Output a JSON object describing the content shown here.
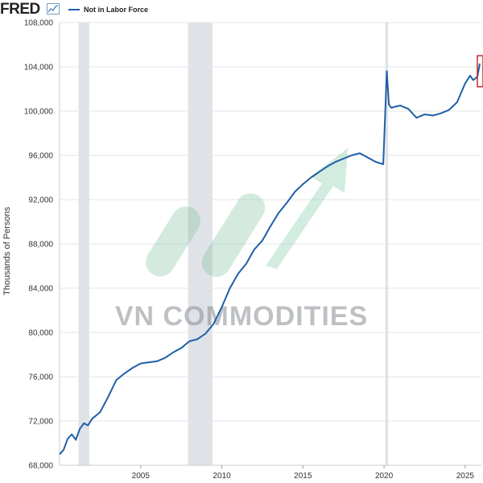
{
  "header": {
    "logo_text": "FRED",
    "legend_label": "Not in Labor Force",
    "line_color": "#1f5fa6"
  },
  "watermark": {
    "text": "VN COMMODITIES"
  },
  "chart_data": {
    "type": "line",
    "title": "Not in Labor Force",
    "xlabel": "",
    "ylabel": "Thousands of Persons",
    "xlim": [
      2000.0,
      2026.0
    ],
    "ylim": [
      68000,
      108000
    ],
    "x_ticks": [
      2005,
      2010,
      2015,
      2020,
      2025
    ],
    "y_ticks": [
      68000,
      72000,
      76000,
      80000,
      84000,
      88000,
      92000,
      96000,
      100000,
      104000,
      108000
    ],
    "y_tick_labels": [
      "68,000",
      "72,000",
      "76,000",
      "80,000",
      "84,000",
      "88,000",
      "92,000",
      "96,000",
      "100,000",
      "104,000",
      "108,000"
    ],
    "x_tick_labels": [
      "2005",
      "2010",
      "2015",
      "2020",
      "2025"
    ],
    "recessions": [
      [
        2001.17,
        2001.83
      ],
      [
        2007.92,
        2009.42
      ],
      [
        2020.08,
        2020.25
      ]
    ],
    "highlight_box": {
      "x": [
        2025.75,
        2026.0
      ],
      "y": [
        102200,
        105000
      ]
    },
    "series": [
      {
        "name": "Not in Labor Force",
        "x": [
          2000.0,
          2000.25,
          2000.5,
          2000.75,
          2001.0,
          2001.25,
          2001.5,
          2001.75,
          2002.0,
          2002.5,
          2003.0,
          2003.5,
          2004.0,
          2004.5,
          2005.0,
          2005.5,
          2006.0,
          2006.5,
          2007.0,
          2007.5,
          2008.0,
          2008.5,
          2009.0,
          2009.5,
          2010.0,
          2010.5,
          2011.0,
          2011.5,
          2012.0,
          2012.5,
          2013.0,
          2013.5,
          2014.0,
          2014.5,
          2015.0,
          2015.5,
          2016.0,
          2016.5,
          2017.0,
          2017.5,
          2018.0,
          2018.5,
          2019.0,
          2019.5,
          2019.95,
          2020.17,
          2020.3,
          2020.45,
          2020.7,
          2021.0,
          2021.5,
          2022.0,
          2022.5,
          2023.0,
          2023.5,
          2024.0,
          2024.5,
          2025.0,
          2025.3,
          2025.5,
          2025.75,
          2025.9
        ],
        "values": [
          69000,
          69400,
          70400,
          70800,
          70300,
          71300,
          71800,
          71600,
          72200,
          72800,
          74200,
          75700,
          76300,
          76800,
          77200,
          77300,
          77400,
          77700,
          78200,
          78600,
          79200,
          79400,
          79900,
          80800,
          82300,
          84000,
          85300,
          86200,
          87500,
          88300,
          89600,
          90800,
          91700,
          92700,
          93400,
          94000,
          94500,
          95000,
          95400,
          95700,
          96000,
          96200,
          95800,
          95400,
          95200,
          103600,
          100600,
          100300,
          100400,
          100500,
          100200,
          99400,
          99700,
          99600,
          99800,
          100100,
          100800,
          102500,
          103200,
          102800,
          103100,
          104300
        ]
      }
    ]
  }
}
